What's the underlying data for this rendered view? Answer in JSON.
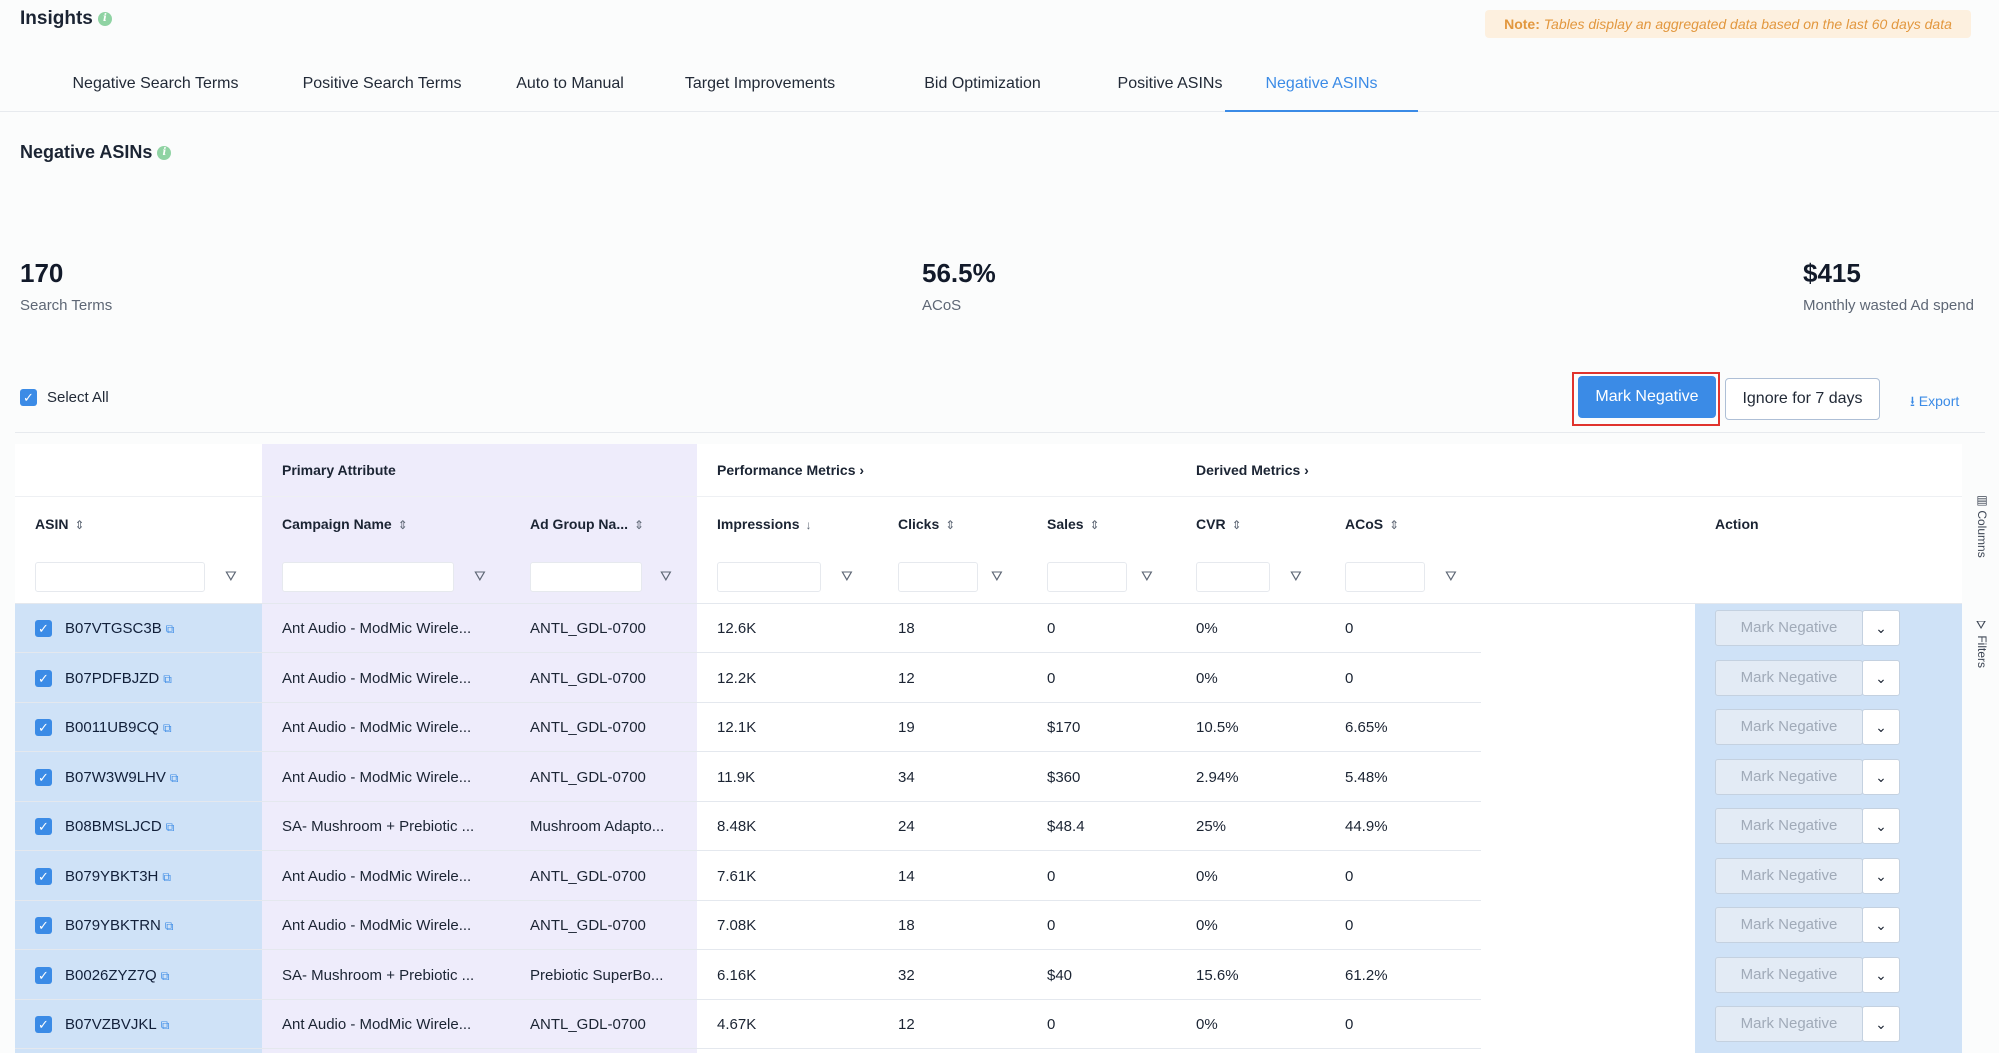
{
  "header": {
    "title": "Insights",
    "note_label": "Note:",
    "note_text": "Tables display an aggregated data based on the last 60 days data"
  },
  "tabs": [
    {
      "label": "Negative Search Terms",
      "active": false
    },
    {
      "label": "Positive Search Terms",
      "active": false
    },
    {
      "label": "Auto to Manual",
      "active": false
    },
    {
      "label": "Target Improvements",
      "active": false
    },
    {
      "label": "Bid Optimization",
      "active": false
    },
    {
      "label": "Positive ASINs",
      "active": false
    },
    {
      "label": "Negative ASINs",
      "active": true
    }
  ],
  "section": {
    "title": "Negative ASINs"
  },
  "stats": [
    {
      "value": "170",
      "label": "Search Terms"
    },
    {
      "value": "56.5%",
      "label": "ACoS"
    },
    {
      "value": "$415",
      "label": "Monthly wasted Ad spend"
    }
  ],
  "toolbar": {
    "select_all": "Select All",
    "mark_negative": "Mark Negative",
    "ignore": "Ignore for 7 days",
    "export": "Export"
  },
  "table": {
    "groups": {
      "primary": "Primary Attribute",
      "performance": "Performance Metrics",
      "derived": "Derived Metrics"
    },
    "columns": {
      "asin": "ASIN",
      "campaign": "Campaign Name",
      "adgroup": "Ad Group Na...",
      "impressions": "Impressions",
      "clicks": "Clicks",
      "sales": "Sales",
      "cvr": "CVR",
      "acos": "ACoS",
      "action": "Action"
    },
    "row_action": "Mark Negative",
    "rows": [
      {
        "asin": "B07VTGSC3B",
        "campaign": "Ant Audio - ModMic Wirele...",
        "adgroup": "ANTL_GDL-0700",
        "impressions": "12.6K",
        "clicks": "18",
        "sales": "0",
        "cvr": "0%",
        "acos": "0"
      },
      {
        "asin": "B07PDFBJZD",
        "campaign": "Ant Audio - ModMic Wirele...",
        "adgroup": "ANTL_GDL-0700",
        "impressions": "12.2K",
        "clicks": "12",
        "sales": "0",
        "cvr": "0%",
        "acos": "0"
      },
      {
        "asin": "B0011UB9CQ",
        "campaign": "Ant Audio - ModMic Wirele...",
        "adgroup": "ANTL_GDL-0700",
        "impressions": "12.1K",
        "clicks": "19",
        "sales": "$170",
        "cvr": "10.5%",
        "acos": "6.65%"
      },
      {
        "asin": "B07W3W9LHV",
        "campaign": "Ant Audio - ModMic Wirele...",
        "adgroup": "ANTL_GDL-0700",
        "impressions": "11.9K",
        "clicks": "34",
        "sales": "$360",
        "cvr": "2.94%",
        "acos": "5.48%"
      },
      {
        "asin": "B08BMSLJCD",
        "campaign": "SA- Mushroom + Prebiotic ...",
        "adgroup": "Mushroom Adapto...",
        "impressions": "8.48K",
        "clicks": "24",
        "sales": "$48.4",
        "cvr": "25%",
        "acos": "44.9%"
      },
      {
        "asin": "B079YBKT3H",
        "campaign": "Ant Audio - ModMic Wirele...",
        "adgroup": "ANTL_GDL-0700",
        "impressions": "7.61K",
        "clicks": "14",
        "sales": "0",
        "cvr": "0%",
        "acos": "0"
      },
      {
        "asin": "B079YBKTRN",
        "campaign": "Ant Audio - ModMic Wirele...",
        "adgroup": "ANTL_GDL-0700",
        "impressions": "7.08K",
        "clicks": "18",
        "sales": "0",
        "cvr": "0%",
        "acos": "0"
      },
      {
        "asin": "B0026ZYZ7Q",
        "campaign": "SA- Mushroom + Prebiotic ...",
        "adgroup": "Prebiotic SuperBo...",
        "impressions": "6.16K",
        "clicks": "32",
        "sales": "$40",
        "cvr": "15.6%",
        "acos": "61.2%"
      },
      {
        "asin": "B07VZBVJKL",
        "campaign": "Ant Audio - ModMic Wirele...",
        "adgroup": "ANTL_GDL-0700",
        "impressions": "4.67K",
        "clicks": "12",
        "sales": "0",
        "cvr": "0%",
        "acos": "0"
      }
    ]
  },
  "side_panel": {
    "columns": "Columns",
    "filters": "Filters"
  },
  "colors": {
    "accent": "#3b8be6",
    "selected_row": "#cfe2f7",
    "primary_band": "#eeecfb",
    "highlight": "#e0332d"
  }
}
